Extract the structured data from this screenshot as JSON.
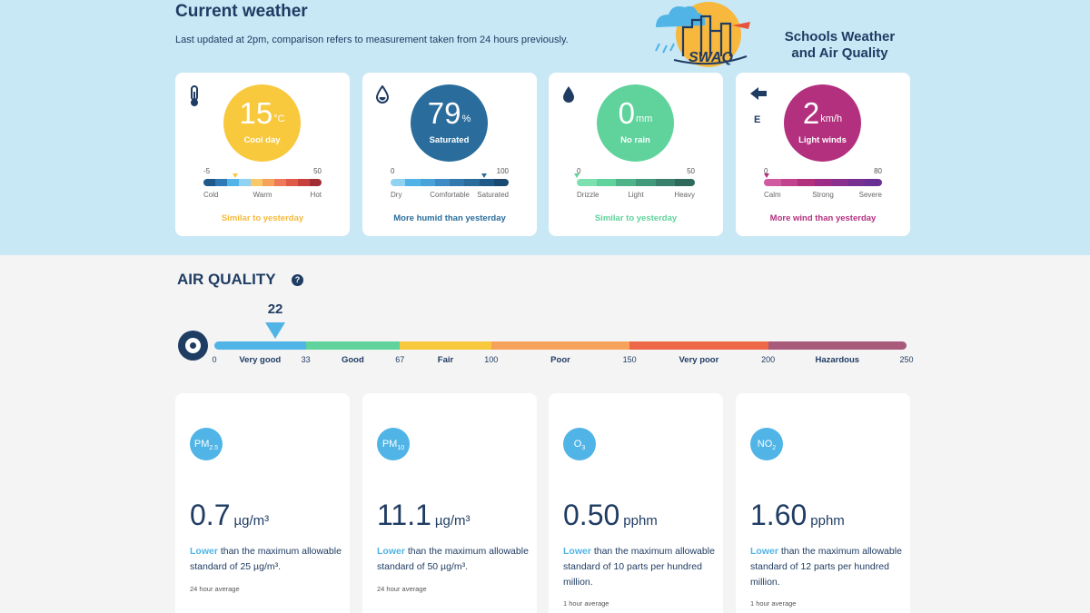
{
  "header": {
    "title": "Current weather",
    "subtitle": "Last updated at 2pm, comparison refers to measurement taken from 24 hours previously.",
    "logo_short": "SWAQ",
    "logo_line1": "Schools Weather",
    "logo_line2": "and Air Quality"
  },
  "weather_cards": [
    {
      "icon": "thermometer-icon",
      "value": "15",
      "unit": "°C",
      "label": "Cool day",
      "color": "#f8c83d",
      "scale_min": "-5",
      "scale_max": "50",
      "marker_fraction": 0.27,
      "scale_labels": [
        "Cold",
        "Warm",
        "Hot"
      ],
      "comparison": "Similar to yesterday",
      "comparison_color": "#f5b93a"
    },
    {
      "icon": "droplet-icon",
      "value": "79",
      "unit": "%",
      "label": "Saturated",
      "color": "#2a6d9c",
      "scale_min": "0",
      "scale_max": "100",
      "marker_fraction": 0.79,
      "scale_labels": [
        "Dry",
        "Comfortable",
        "Saturated"
      ],
      "comparison": "More humid than yesterday",
      "comparison_color": "#2a6d9c"
    },
    {
      "icon": "raindrop-icon",
      "value": "0",
      "unit": "mm",
      "label": "No rain",
      "color": "#5fd39b",
      "scale_min": "0",
      "scale_max": "50",
      "marker_fraction": 0.0,
      "scale_labels": [
        "Drizzle",
        "Light",
        "Heavy"
      ],
      "comparison": "Similar to yesterday",
      "comparison_color": "#5fd39b"
    },
    {
      "icon": "wind-arrow-icon",
      "direction": "E",
      "value": "2",
      "unit": "km/h",
      "label": "Light winds",
      "color": "#b3307e",
      "scale_min": "0",
      "scale_max": "80",
      "marker_fraction": 0.02,
      "scale_labels": [
        "Calm",
        "Strong",
        "Severe"
      ],
      "comparison": "More wind than yesterday",
      "comparison_color": "#b3307e"
    }
  ],
  "air_quality": {
    "title": "AIR QUALITY",
    "help": "?",
    "current": "22",
    "current_value": 22,
    "ticks": [
      "0",
      "33",
      "67",
      "100",
      "150",
      "200",
      "250"
    ],
    "categories": [
      "Very good",
      "Good",
      "Fair",
      "Poor",
      "Very poor",
      "Hazardous"
    ],
    "colors": [
      "#50b4e6",
      "#5fd39b",
      "#f8c83d",
      "#f7a25a",
      "#ee6848",
      "#a85a7b"
    ]
  },
  "pollutants": [
    {
      "badge": "PM",
      "badge_sub": "2.5",
      "value": "0.7",
      "unit": "µg/m³",
      "lower": "Lower",
      "desc": " than the maximum allowable standard of 25 µg/m³.",
      "avg": "24 hour average"
    },
    {
      "badge": "PM",
      "badge_sub": "10",
      "value": "11.1",
      "unit": "µg/m³",
      "lower": "Lower",
      "desc": " than the maximum allowable standard of 50 µg/m³.",
      "avg": "24 hour average"
    },
    {
      "badge": "O",
      "badge_sub": "3",
      "value": "0.50",
      "unit": "pphm",
      "lower": "Lower",
      "desc": " than the maximum allowable standard of 10 parts per hundred million.",
      "avg": "1 hour average"
    },
    {
      "badge": "NO",
      "badge_sub": "2",
      "value": "1.60",
      "unit": "pphm",
      "lower": "Lower",
      "desc": " than the maximum allowable standard of 12 parts per hundred million.",
      "avg": "1 hour average"
    }
  ]
}
